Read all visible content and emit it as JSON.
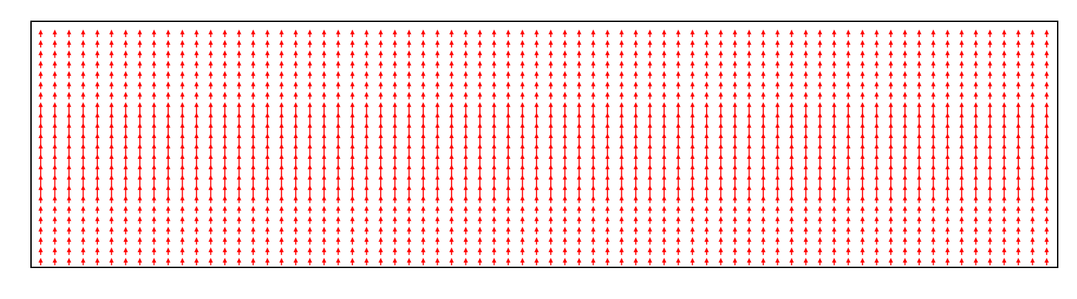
{
  "chart_data": {
    "type": "quiver",
    "title": "",
    "xlabel": "",
    "ylabel": "",
    "axes_ticks_visible": false,
    "grid": false,
    "legend": "none",
    "grid_columns": 72,
    "grid_rows": 23,
    "x_range": [
      0,
      71
    ],
    "y_range": [
      0,
      22
    ],
    "vector_direction": "up",
    "vector_dx": 0,
    "vector_dy": 1,
    "dense_band_rows": [
      7,
      15
    ],
    "colors": {
      "arrow": "#ff0000",
      "axes_frame": "#000000",
      "background": "#ffffff"
    }
  }
}
